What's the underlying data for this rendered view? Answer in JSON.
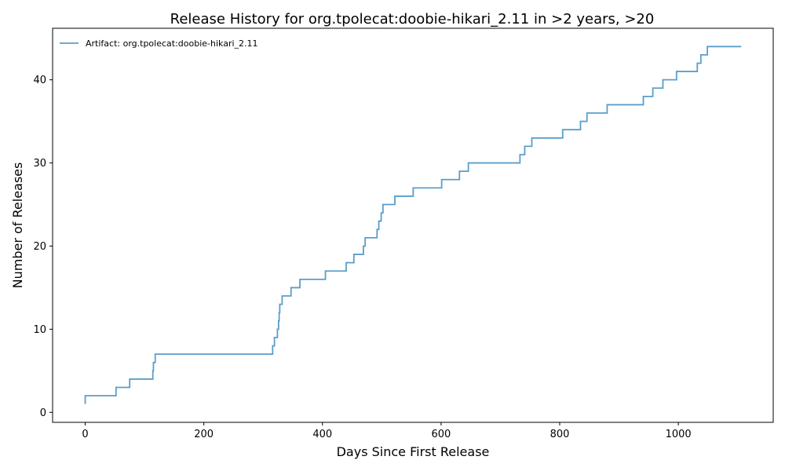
{
  "chart_data": {
    "type": "line",
    "step": "post",
    "title": "Release History for org.tpolecat:doobie-hikari_2.11 in >2 years, >20",
    "xlabel": "Days Since First Release",
    "ylabel": "Number of Releases",
    "xlim": [
      -55,
      1160
    ],
    "ylim": [
      -1.2,
      46.2
    ],
    "xticks": [
      0,
      200,
      400,
      600,
      800,
      1000
    ],
    "yticks": [
      0,
      10,
      20,
      30,
      40
    ],
    "grid": false,
    "legend_position": "top-left",
    "series": [
      {
        "name": "Artifact: org.tpolecat:doobie-hikari_2.11",
        "color": "#5b9ec9",
        "x": [
          0,
          0,
          52,
          75,
          114,
          115,
          118,
          316,
          319,
          324,
          326,
          327,
          328,
          332,
          347,
          362,
          405,
          440,
          453,
          469,
          472,
          492,
          495,
          499,
          500,
          502,
          522,
          553,
          601,
          631,
          646,
          733,
          741,
          753,
          805,
          835,
          846,
          880,
          941,
          957,
          974,
          997,
          1032,
          1038,
          1049,
          1106
        ],
        "y": [
          1,
          2,
          3,
          4,
          5,
          6,
          7,
          8,
          9,
          10,
          11,
          12,
          13,
          14,
          15,
          16,
          17,
          18,
          19,
          20,
          21,
          22,
          23,
          24,
          24,
          25,
          26,
          27,
          28,
          29,
          30,
          31,
          32,
          33,
          34,
          35,
          36,
          37,
          38,
          39,
          40,
          41,
          42,
          43,
          44,
          44
        ]
      }
    ]
  }
}
